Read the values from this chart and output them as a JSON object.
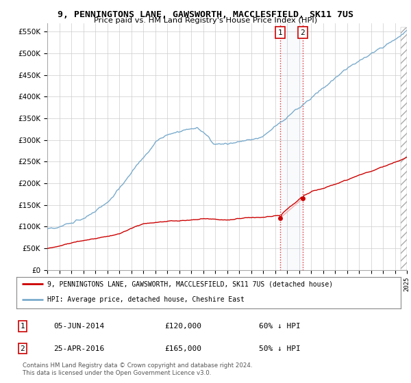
{
  "title": "9, PENNINGTONS LANE, GAWSWORTH, MACCLESFIELD, SK11 7US",
  "subtitle": "Price paid vs. HM Land Registry's House Price Index (HPI)",
  "ylabel_ticks": [
    "£0",
    "£50K",
    "£100K",
    "£150K",
    "£200K",
    "£250K",
    "£300K",
    "£350K",
    "£400K",
    "£450K",
    "£500K",
    "£550K"
  ],
  "ytick_values": [
    0,
    50000,
    100000,
    150000,
    200000,
    250000,
    300000,
    350000,
    400000,
    450000,
    500000,
    550000
  ],
  "x_start_year": 1995,
  "x_end_year": 2025,
  "red_line_label": "9, PENNINGTONS LANE, GAWSWORTH, MACCLESFIELD, SK11 7US (detached house)",
  "blue_line_label": "HPI: Average price, detached house, Cheshire East",
  "sale1_date": "05-JUN-2014",
  "sale1_price": "£120,000",
  "sale1_pct": "60% ↓ HPI",
  "sale1_year": 2014.43,
  "sale1_value": 120000,
  "sale2_date": "25-APR-2016",
  "sale2_price": "£165,000",
  "sale2_pct": "50% ↓ HPI",
  "sale2_year": 2016.31,
  "sale2_value": 165000,
  "footnote": "Contains HM Land Registry data © Crown copyright and database right 2024.\nThis data is licensed under the Open Government Licence v3.0.",
  "bg_color": "#ffffff",
  "plot_bg_color": "#ffffff",
  "grid_color": "#cccccc",
  "red_color": "#cc0000",
  "blue_color": "#7aabcc"
}
